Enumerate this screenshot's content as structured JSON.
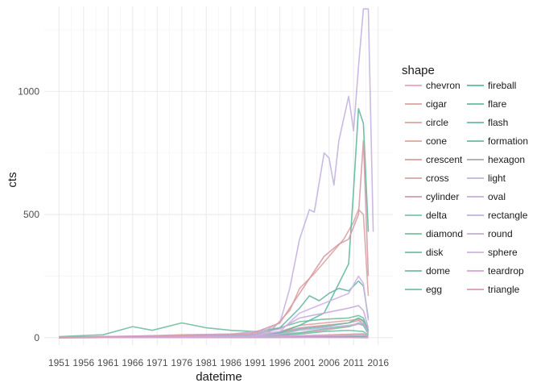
{
  "chart_data": {
    "type": "line",
    "xlabel": "datetime",
    "ylabel": "cts",
    "legend_title": "shape",
    "legend_position": "right",
    "grid": true,
    "xlim": [
      1948,
      2019
    ],
    "ylim": [
      -30,
      1345
    ],
    "x_ticks": [
      1951,
      1956,
      1961,
      1966,
      1971,
      1976,
      1981,
      1986,
      1991,
      1996,
      2001,
      2006,
      2011,
      2016
    ],
    "y_ticks": [
      0,
      500,
      1000
    ],
    "series": [
      {
        "name": "chevron",
        "color": "#e6a3bc",
        "points": [
          [
            1951,
            1
          ],
          [
            1980,
            2
          ],
          [
            1995,
            5
          ],
          [
            2000,
            18
          ],
          [
            2005,
            30
          ],
          [
            2010,
            45
          ],
          [
            2012,
            55
          ],
          [
            2013,
            50
          ],
          [
            2014,
            20
          ]
        ]
      },
      {
        "name": "cigar",
        "color": "#e0a0a0",
        "points": [
          [
            1951,
            2
          ],
          [
            1960,
            3
          ],
          [
            1970,
            5
          ],
          [
            1980,
            8
          ],
          [
            1990,
            10
          ],
          [
            1996,
            25
          ],
          [
            2000,
            50
          ],
          [
            2005,
            60
          ],
          [
            2010,
            70
          ],
          [
            2012,
            75
          ],
          [
            2013,
            65
          ],
          [
            2014,
            25
          ]
        ]
      },
      {
        "name": "circle",
        "color": "#dca3a3",
        "points": [
          [
            1951,
            1
          ],
          [
            1966,
            6
          ],
          [
            1976,
            12
          ],
          [
            1986,
            15
          ],
          [
            1994,
            25
          ],
          [
            1998,
            110
          ],
          [
            2000,
            200
          ],
          [
            2003,
            260
          ],
          [
            2006,
            330
          ],
          [
            2009,
            400
          ],
          [
            2011,
            470
          ],
          [
            2012,
            520
          ],
          [
            2013,
            500
          ],
          [
            2014,
            170
          ]
        ]
      },
      {
        "name": "cone",
        "color": "#dba89a",
        "points": [
          [
            1951,
            0
          ],
          [
            1980,
            2
          ],
          [
            1996,
            4
          ],
          [
            2005,
            8
          ],
          [
            2010,
            12
          ],
          [
            2013,
            14
          ],
          [
            2014,
            5
          ]
        ]
      },
      {
        "name": "crescent",
        "color": "#d99e98",
        "points": [
          [
            1951,
            0
          ],
          [
            1995,
            1
          ],
          [
            2005,
            2
          ],
          [
            2012,
            3
          ],
          [
            2014,
            1
          ]
        ]
      },
      {
        "name": "cross",
        "color": "#d6a4a7",
        "points": [
          [
            1951,
            0
          ],
          [
            1970,
            2
          ],
          [
            1990,
            3
          ],
          [
            2000,
            8
          ],
          [
            2010,
            14
          ],
          [
            2013,
            16
          ],
          [
            2014,
            6
          ]
        ]
      },
      {
        "name": "cylinder",
        "color": "#d59aa8",
        "points": [
          [
            1951,
            0
          ],
          [
            1970,
            4
          ],
          [
            1990,
            6
          ],
          [
            1996,
            20
          ],
          [
            2000,
            40
          ],
          [
            2005,
            50
          ],
          [
            2010,
            60
          ],
          [
            2012,
            70
          ],
          [
            2013,
            55
          ],
          [
            2014,
            20
          ]
        ]
      },
      {
        "name": "delta",
        "color": "#7dc4a4",
        "points": [
          [
            1951,
            0
          ],
          [
            1990,
            1
          ],
          [
            2000,
            3
          ],
          [
            2010,
            5
          ],
          [
            2013,
            6
          ],
          [
            2014,
            2
          ]
        ]
      },
      {
        "name": "diamond",
        "color": "#79c29f",
        "points": [
          [
            1951,
            0
          ],
          [
            1970,
            3
          ],
          [
            1990,
            5
          ],
          [
            2000,
            20
          ],
          [
            2005,
            35
          ],
          [
            2010,
            45
          ],
          [
            2012,
            60
          ],
          [
            2013,
            50
          ],
          [
            2014,
            15
          ]
        ]
      },
      {
        "name": "disk",
        "color": "#70bfa0",
        "points": [
          [
            1951,
            4
          ],
          [
            1955,
            8
          ],
          [
            1960,
            12
          ],
          [
            1966,
            45
          ],
          [
            1970,
            30
          ],
          [
            1976,
            60
          ],
          [
            1981,
            40
          ],
          [
            1986,
            30
          ],
          [
            1991,
            25
          ],
          [
            1996,
            40
          ],
          [
            2000,
            65
          ],
          [
            2005,
            75
          ],
          [
            2010,
            80
          ],
          [
            2012,
            90
          ],
          [
            2013,
            80
          ],
          [
            2014,
            30
          ]
        ]
      },
      {
        "name": "dome",
        "color": "#6fbe99",
        "points": [
          [
            1951,
            0
          ],
          [
            1980,
            1
          ],
          [
            2000,
            2
          ],
          [
            2010,
            3
          ],
          [
            2014,
            1
          ]
        ]
      },
      {
        "name": "egg",
        "color": "#72c0a8",
        "points": [
          [
            1951,
            1
          ],
          [
            1970,
            3
          ],
          [
            1990,
            5
          ],
          [
            2000,
            15
          ],
          [
            2005,
            25
          ],
          [
            2010,
            30
          ],
          [
            2013,
            25
          ],
          [
            2014,
            10
          ]
        ]
      },
      {
        "name": "fireball",
        "color": "#5fb8a0",
        "points": [
          [
            1951,
            1
          ],
          [
            1970,
            4
          ],
          [
            1990,
            8
          ],
          [
            1996,
            20
          ],
          [
            2000,
            50
          ],
          [
            2005,
            100
          ],
          [
            2010,
            300
          ],
          [
            2011,
            600
          ],
          [
            2012,
            930
          ],
          [
            2013,
            870
          ],
          [
            2014,
            430
          ]
        ]
      },
      {
        "name": "flare",
        "color": "#66b9a2",
        "points": [
          [
            1951,
            0
          ],
          [
            1990,
            1
          ],
          [
            2000,
            2
          ],
          [
            2010,
            4
          ],
          [
            2013,
            5
          ],
          [
            2014,
            2
          ]
        ]
      },
      {
        "name": "flash",
        "color": "#69baa6",
        "points": [
          [
            1951,
            1
          ],
          [
            1970,
            3
          ],
          [
            1990,
            5
          ],
          [
            1996,
            15
          ],
          [
            2000,
            35
          ],
          [
            2005,
            45
          ],
          [
            2010,
            60
          ],
          [
            2012,
            80
          ],
          [
            2013,
            70
          ],
          [
            2014,
            25
          ]
        ]
      },
      {
        "name": "formation",
        "color": "#6bb6a8",
        "points": [
          [
            1951,
            1
          ],
          [
            1970,
            5
          ],
          [
            1990,
            10
          ],
          [
            1996,
            40
          ],
          [
            2000,
            120
          ],
          [
            2002,
            170
          ],
          [
            2004,
            150
          ],
          [
            2006,
            180
          ],
          [
            2008,
            200
          ],
          [
            2010,
            190
          ],
          [
            2012,
            230
          ],
          [
            2013,
            210
          ],
          [
            2014,
            80
          ]
        ]
      },
      {
        "name": "hexagon",
        "color": "#a8a8a8",
        "points": [
          [
            1951,
            0
          ],
          [
            1990,
            1
          ],
          [
            2005,
            1
          ],
          [
            2014,
            0
          ]
        ]
      },
      {
        "name": "light",
        "color": "#c4b2e0",
        "points": [
          [
            1951,
            2
          ],
          [
            1966,
            5
          ],
          [
            1976,
            10
          ],
          [
            1986,
            15
          ],
          [
            1993,
            30
          ],
          [
            1996,
            60
          ],
          [
            1998,
            200
          ],
          [
            2000,
            400
          ],
          [
            2002,
            520
          ],
          [
            2003,
            510
          ],
          [
            2005,
            750
          ],
          [
            2006,
            730
          ],
          [
            2007,
            620
          ],
          [
            2008,
            800
          ],
          [
            2010,
            980
          ],
          [
            2011,
            840
          ],
          [
            2012,
            1100
          ],
          [
            2013,
            1335
          ],
          [
            2014,
            1335
          ],
          [
            2015,
            430
          ]
        ]
      },
      {
        "name": "oval",
        "color": "#c7abdb",
        "points": [
          [
            1951,
            1
          ],
          [
            1970,
            8
          ],
          [
            1990,
            12
          ],
          [
            1996,
            35
          ],
          [
            2000,
            80
          ],
          [
            2005,
            100
          ],
          [
            2010,
            120
          ],
          [
            2012,
            130
          ],
          [
            2013,
            110
          ],
          [
            2014,
            40
          ]
        ]
      },
      {
        "name": "rectangle",
        "color": "#c5aee3",
        "points": [
          [
            1951,
            0
          ],
          [
            1970,
            3
          ],
          [
            1990,
            5
          ],
          [
            1996,
            15
          ],
          [
            2000,
            30
          ],
          [
            2005,
            40
          ],
          [
            2010,
            50
          ],
          [
            2013,
            60
          ],
          [
            2014,
            20
          ]
        ]
      },
      {
        "name": "round",
        "color": "#c9a8d6",
        "points": [
          [
            1951,
            0
          ],
          [
            1990,
            1
          ],
          [
            2005,
            1
          ],
          [
            2014,
            0
          ]
        ]
      },
      {
        "name": "sphere",
        "color": "#cdb3e6",
        "points": [
          [
            1951,
            1
          ],
          [
            1970,
            3
          ],
          [
            1990,
            6
          ],
          [
            1996,
            25
          ],
          [
            2000,
            100
          ],
          [
            2005,
            140
          ],
          [
            2010,
            180
          ],
          [
            2012,
            250
          ],
          [
            2013,
            220
          ],
          [
            2014,
            70
          ]
        ]
      },
      {
        "name": "teardrop",
        "color": "#d9a3d4",
        "points": [
          [
            1951,
            0
          ],
          [
            1970,
            2
          ],
          [
            1990,
            3
          ],
          [
            2000,
            8
          ],
          [
            2010,
            10
          ],
          [
            2013,
            12
          ],
          [
            2014,
            4
          ]
        ]
      },
      {
        "name": "triangle",
        "color": "#d79ba7",
        "points": [
          [
            1951,
            2
          ],
          [
            1960,
            4
          ],
          [
            1970,
            6
          ],
          [
            1980,
            10
          ],
          [
            1990,
            15
          ],
          [
            1996,
            60
          ],
          [
            2000,
            180
          ],
          [
            2005,
            330
          ],
          [
            2008,
            380
          ],
          [
            2010,
            400
          ],
          [
            2012,
            500
          ],
          [
            2013,
            800
          ],
          [
            2014,
            250
          ]
        ]
      }
    ]
  }
}
